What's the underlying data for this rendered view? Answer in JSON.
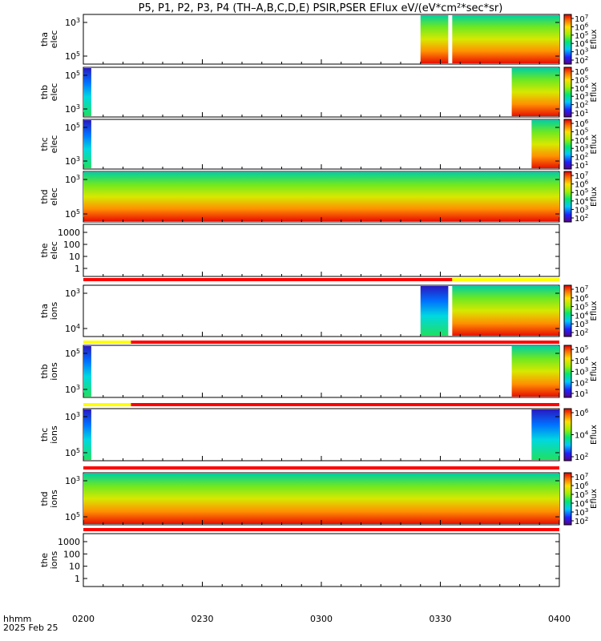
{
  "title": "P5, P1, P2, P3, P4 (TH–A,B,C,D,E) PSIR,PSER EFlux eV/(eV*cm²*sec*sr)",
  "time_axis": {
    "label_line1": "hhmm",
    "label_line2": "2025 Feb 25",
    "ticks": [
      "0200",
      "0230",
      "0300",
      "0330",
      "0400"
    ]
  },
  "chart_data": {
    "type": "heatmap",
    "xlim": [
      "02:00",
      "04:00"
    ],
    "colorbar_label": "Eflux",
    "panels": [
      {
        "label1": "tha",
        "label2": "elec",
        "yticks": [
          {
            "b": "10",
            "e": "3"
          },
          {
            "b": "10",
            "e": "5"
          }
        ],
        "cbar_ticks": [
          {
            "b": "10",
            "e": "7"
          },
          {
            "b": "10",
            "e": "6"
          },
          {
            "b": "10",
            "e": "5"
          },
          {
            "b": "10",
            "e": "4"
          },
          {
            "b": "10",
            "e": "3"
          },
          {
            "b": "10",
            "e": "2"
          }
        ],
        "data": [
          {
            "start": "03:25",
            "end": "03:32",
            "hot": true
          },
          {
            "start": "03:33",
            "end": "04:00",
            "hot": true
          }
        ]
      },
      {
        "label1": "thb",
        "label2": "elec",
        "yticks": [
          {
            "b": "10",
            "e": "5"
          },
          {
            "b": "10",
            "e": "3"
          }
        ],
        "cbar_ticks": [
          {
            "b": "10",
            "e": "6"
          },
          {
            "b": "10",
            "e": "5"
          },
          {
            "b": "10",
            "e": "4"
          },
          {
            "b": "10",
            "e": "3"
          },
          {
            "b": "10",
            "e": "2"
          },
          {
            "b": "10",
            "e": "1"
          }
        ],
        "data": [
          {
            "start": "02:00",
            "end": "02:02",
            "hot": false
          },
          {
            "start": "03:48",
            "end": "04:00",
            "hot": true
          }
        ]
      },
      {
        "label1": "thc",
        "label2": "elec",
        "yticks": [
          {
            "b": "10",
            "e": "5"
          },
          {
            "b": "10",
            "e": "3"
          }
        ],
        "cbar_ticks": [
          {
            "b": "10",
            "e": "6"
          },
          {
            "b": "10",
            "e": "5"
          },
          {
            "b": "10",
            "e": "4"
          },
          {
            "b": "10",
            "e": "3"
          },
          {
            "b": "10",
            "e": "2"
          },
          {
            "b": "10",
            "e": "1"
          }
        ],
        "data": [
          {
            "start": "02:00",
            "end": "02:02",
            "hot": false
          },
          {
            "start": "03:53",
            "end": "04:00",
            "hot": true
          }
        ]
      },
      {
        "label1": "thd",
        "label2": "elec",
        "yticks": [
          {
            "b": "10",
            "e": "3"
          },
          {
            "b": "10",
            "e": "5"
          }
        ],
        "cbar_ticks": [
          {
            "b": "10",
            "e": "7"
          },
          {
            "b": "10",
            "e": "6"
          },
          {
            "b": "10",
            "e": "5"
          },
          {
            "b": "10",
            "e": "4"
          },
          {
            "b": "10",
            "e": "3"
          },
          {
            "b": "10",
            "e": "2"
          }
        ],
        "data": [
          {
            "start": "02:00",
            "end": "04:00",
            "hot": true
          }
        ]
      },
      {
        "label1": "the",
        "label2": "elec",
        "yticks": [
          "1000",
          "100",
          "10",
          "1"
        ],
        "cbar_ticks": [],
        "data": []
      },
      {
        "label1": "tha",
        "label2": "ions",
        "yticks": [
          {
            "b": "10",
            "e": "3"
          },
          {
            "b": "10",
            "e": "4"
          }
        ],
        "cbar_ticks": [
          {
            "b": "10",
            "e": "7"
          },
          {
            "b": "10",
            "e": "6"
          },
          {
            "b": "10",
            "e": "5"
          },
          {
            "b": "10",
            "e": "4"
          },
          {
            "b": "10",
            "e": "3"
          },
          {
            "b": "10",
            "e": "2"
          }
        ],
        "data": [
          {
            "start": "03:25",
            "end": "03:32",
            "hot": false
          },
          {
            "start": "03:33",
            "end": "04:00",
            "hot": true
          }
        ]
      },
      {
        "label1": "thb",
        "label2": "ions",
        "yticks": [
          {
            "b": "10",
            "e": "5"
          },
          {
            "b": "10",
            "e": "3"
          }
        ],
        "cbar_ticks": [
          {
            "b": "10",
            "e": "5"
          },
          {
            "b": "10",
            "e": "4"
          },
          {
            "b": "10",
            "e": "3"
          },
          {
            "b": "10",
            "e": "2"
          },
          {
            "b": "10",
            "e": "1"
          }
        ],
        "data": [
          {
            "start": "02:00",
            "end": "02:02",
            "hot": false
          },
          {
            "start": "03:48",
            "end": "04:00",
            "hot": true
          }
        ]
      },
      {
        "label1": "thc",
        "label2": "ions",
        "yticks": [
          {
            "b": "10",
            "e": "3"
          },
          {
            "b": "10",
            "e": "5"
          }
        ],
        "cbar_ticks": [
          {
            "b": "10",
            "e": "6"
          },
          {
            "b": "10",
            "e": "4"
          },
          {
            "b": "10",
            "e": "2"
          }
        ],
        "data": [
          {
            "start": "02:00",
            "end": "02:02",
            "hot": false
          },
          {
            "start": "03:53",
            "end": "04:00",
            "hot": false
          }
        ]
      },
      {
        "label1": "thd",
        "label2": "ions",
        "yticks": [
          {
            "b": "10",
            "e": "3"
          },
          {
            "b": "10",
            "e": "5"
          }
        ],
        "cbar_ticks": [
          {
            "b": "10",
            "e": "7"
          },
          {
            "b": "10",
            "e": "6"
          },
          {
            "b": "10",
            "e": "5"
          },
          {
            "b": "10",
            "e": "4"
          },
          {
            "b": "10",
            "e": "3"
          },
          {
            "b": "10",
            "e": "2"
          }
        ],
        "data": [
          {
            "start": "02:00",
            "end": "04:00",
            "hot": true
          }
        ]
      },
      {
        "label1": "the",
        "label2": "ions",
        "yticks": [
          "1000",
          "100",
          "10",
          "1"
        ],
        "cbar_ticks": [],
        "data": []
      }
    ]
  }
}
